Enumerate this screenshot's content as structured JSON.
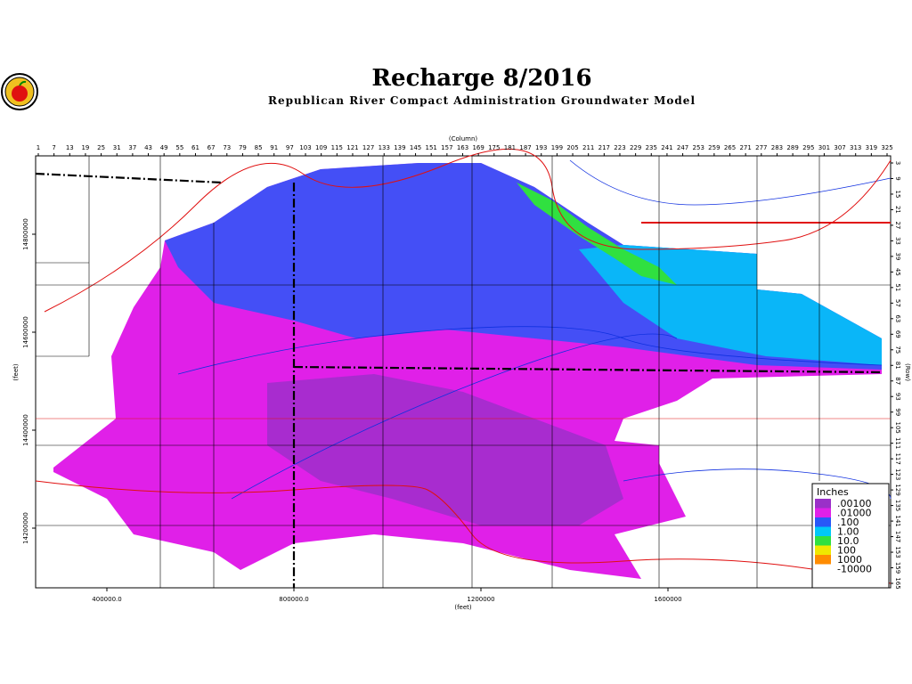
{
  "header": {
    "title": "Recharge 8/2016",
    "subtitle": "Republican River Compact Administration Groundwater Model"
  },
  "axes": {
    "top_label": "(Column)",
    "columns": [
      1,
      7,
      13,
      19,
      25,
      31,
      37,
      43,
      49,
      55,
      61,
      67,
      73,
      79,
      85,
      91,
      97,
      103,
      109,
      115,
      121,
      127,
      133,
      139,
      145,
      151,
      157,
      163,
      169,
      175,
      181,
      187,
      193,
      199,
      205,
      211,
      217,
      223,
      229,
      235,
      241,
      247,
      253,
      259,
      265,
      271,
      277,
      283,
      289,
      295,
      301,
      307,
      313,
      319,
      325
    ],
    "right_label": "(Row)",
    "rows": [
      3,
      9,
      15,
      21,
      27,
      33,
      39,
      45,
      51,
      57,
      63,
      69,
      75,
      81,
      87,
      93,
      99,
      105,
      111,
      117,
      123,
      129,
      135,
      141,
      147,
      153,
      159,
      165
    ],
    "left_label": "(feet)",
    "y_ticks": [
      14800000,
      14600000,
      14400000,
      14200000
    ],
    "bottom_label": "(feet)",
    "x_ticks": [
      {
        "value": 400000,
        "label": "400000.0"
      },
      {
        "value": 800000,
        "label": "800000.0"
      },
      1200000,
      1600000
    ]
  },
  "legend": {
    "title": "Inches",
    "entries": [
      {
        "label": ".00100",
        "color": "#9a30c8"
      },
      {
        "label": ".01000",
        "color": "#e020e8"
      },
      {
        "label": ".100",
        "color": "#2858f8"
      },
      {
        "label": "1.00",
        "color": "#00c8f8"
      },
      {
        "label": "10.0",
        "color": "#30e040"
      },
      {
        "label": "100",
        "color": "#f0e800"
      },
      {
        "label": "1000",
        "color": "#ff8c00"
      },
      {
        "label": "-10000",
        "color": "#ffffff"
      }
    ]
  }
}
